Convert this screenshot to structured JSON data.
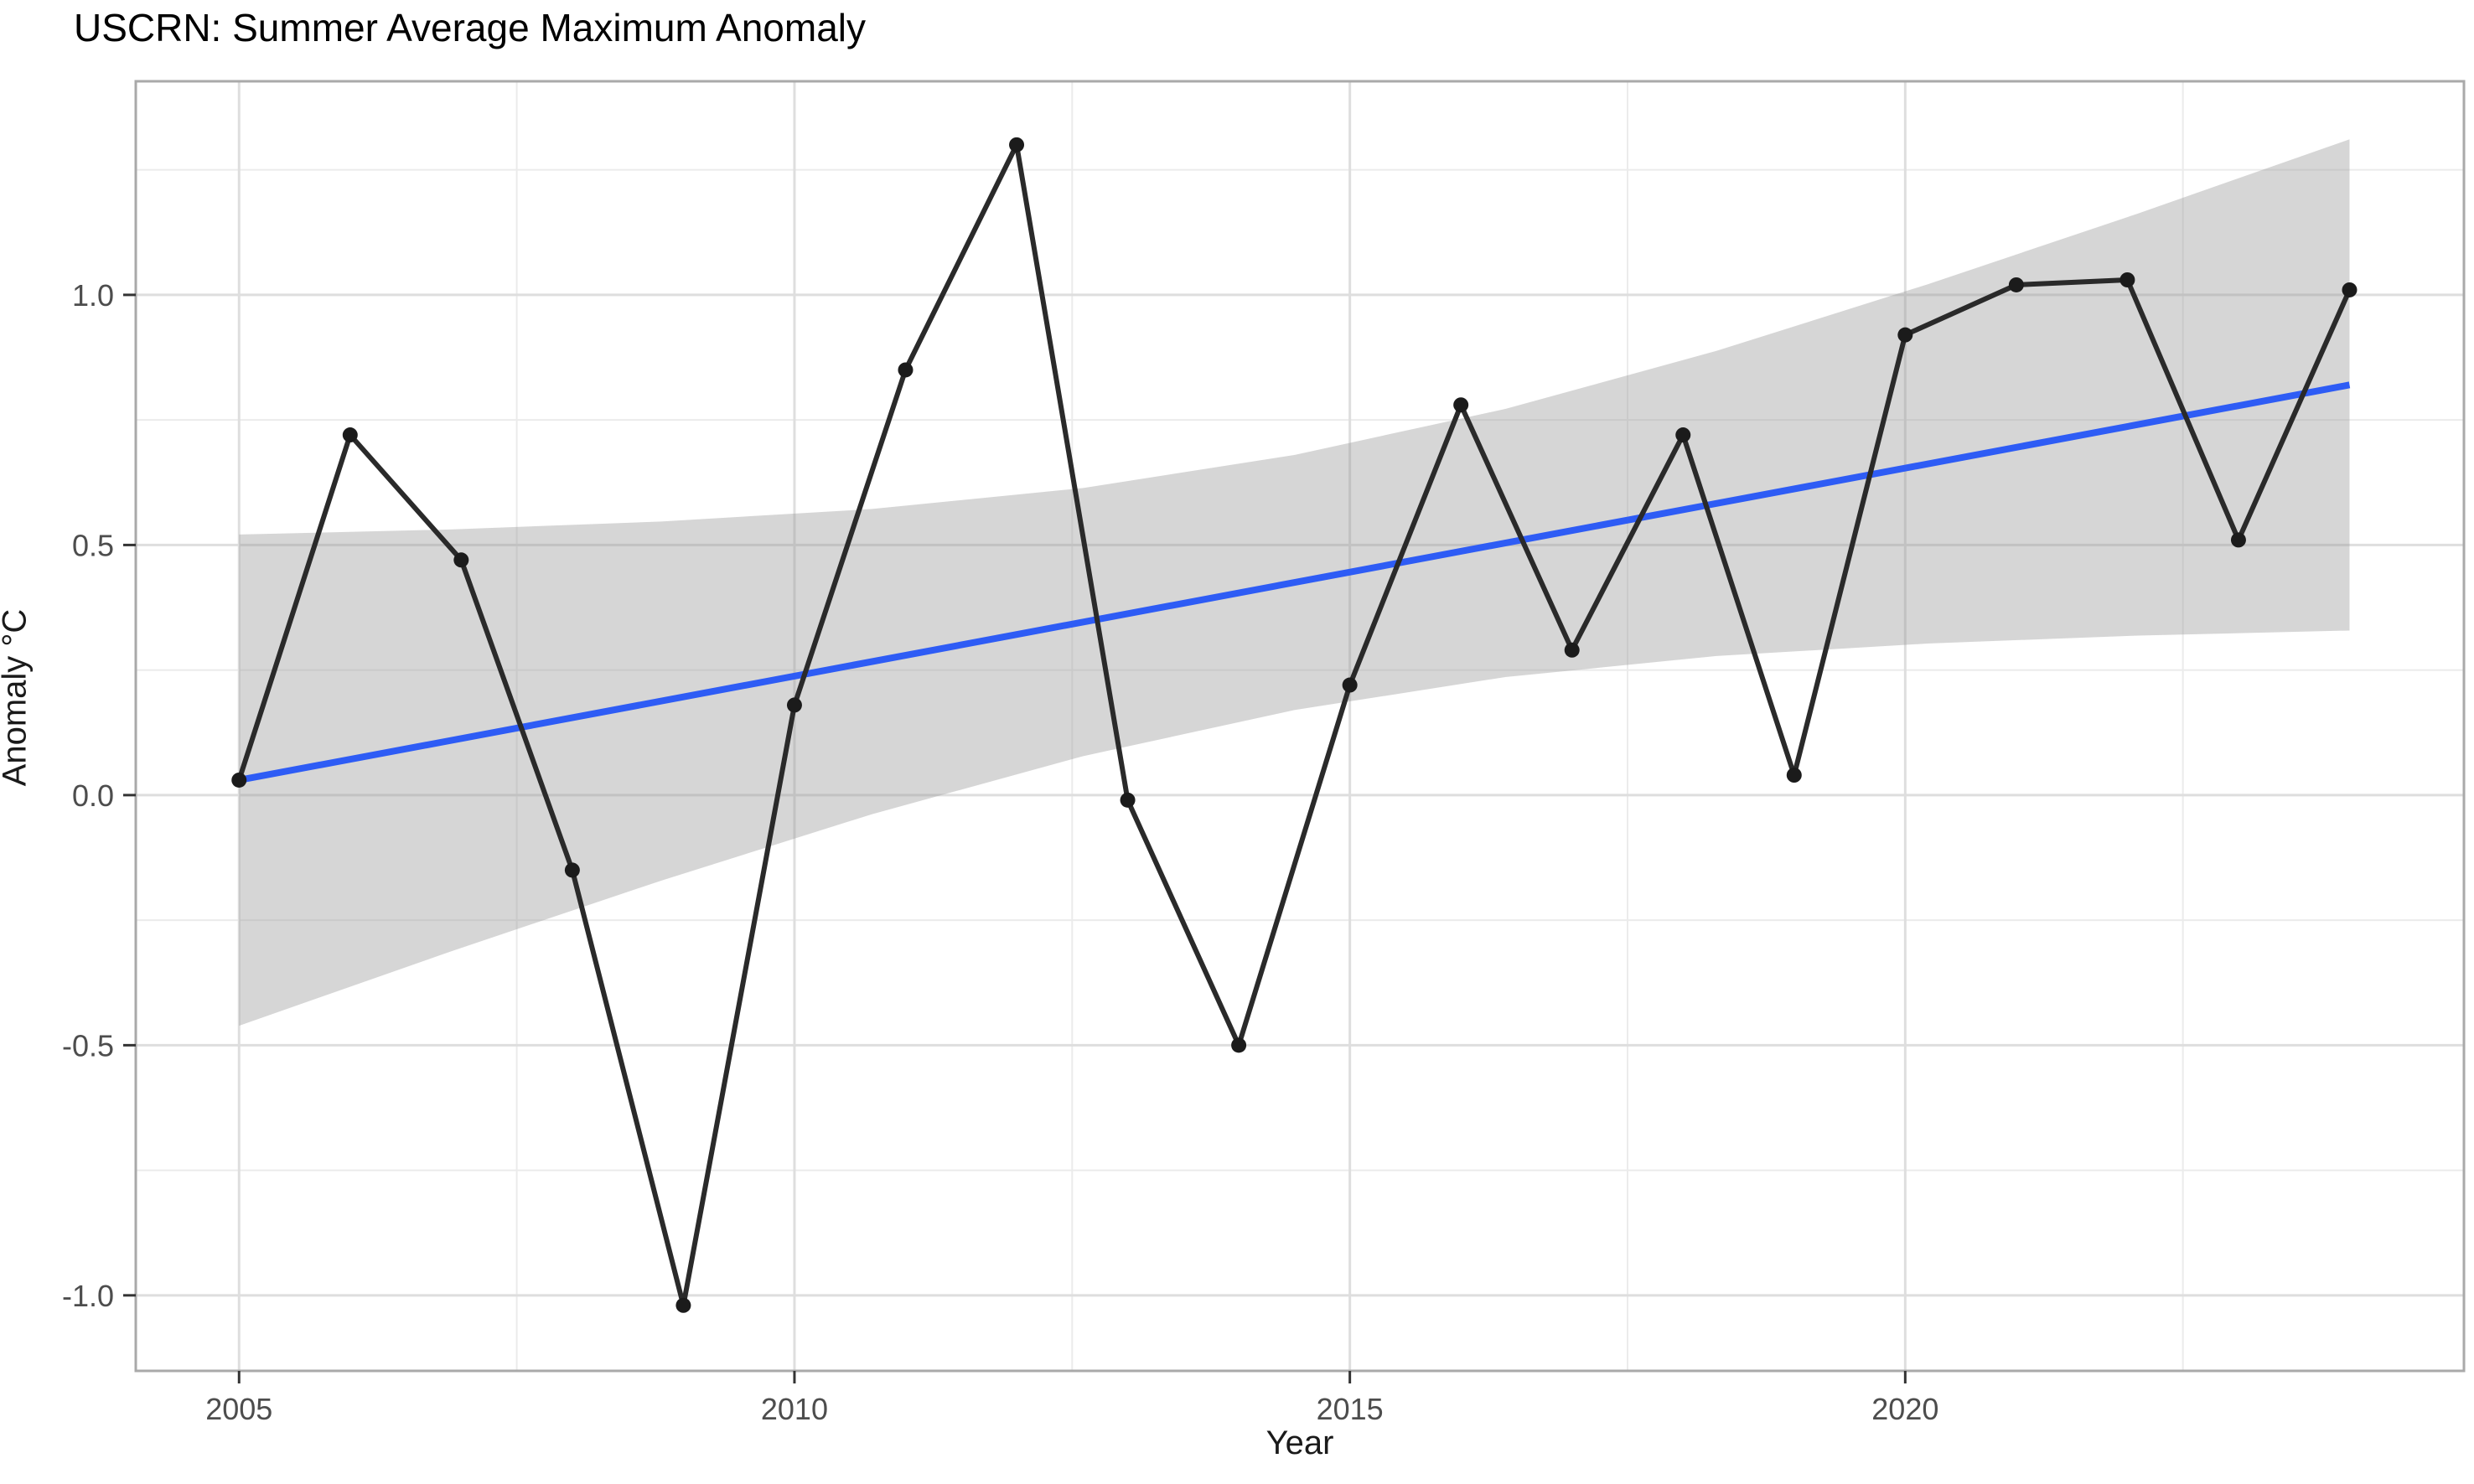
{
  "title": "USCRN: Summer Average Maximum Anomaly",
  "chart_data": {
    "type": "line",
    "title": "USCRN: Summer Average Maximum Anomaly",
    "xlabel": "Year",
    "ylabel": "Anomaly °C",
    "x": [
      2005,
      2006,
      2007,
      2008,
      2009,
      2010,
      2011,
      2012,
      2013,
      2014,
      2015,
      2016,
      2017,
      2018,
      2019,
      2020,
      2021,
      2022,
      2023,
      2024
    ],
    "series": [
      {
        "name": "Summer Average Maximum Anomaly",
        "values": [
          0.03,
          0.72,
          0.47,
          -0.15,
          -1.02,
          0.18,
          0.85,
          1.3,
          -0.01,
          -0.5,
          0.22,
          0.78,
          0.29,
          0.72,
          0.04,
          0.92,
          1.02,
          1.03,
          0.51,
          1.01
        ],
        "color": "#2a2a2a",
        "point_color": "#1b1b1b"
      }
    ],
    "trend_line": {
      "x": [
        2005,
        2024
      ],
      "y": [
        0.03,
        0.82
      ],
      "color": "#2e5cf5"
    },
    "confidence_band": {
      "x": [
        2005,
        2006.9,
        2008.8,
        2010.7,
        2012.6,
        2014.5,
        2016.4,
        2018.3,
        2020.2,
        2022.1,
        2024
      ],
      "upper": [
        0.521,
        0.531,
        0.547,
        0.572,
        0.614,
        0.68,
        0.772,
        0.888,
        1.021,
        1.163,
        1.311
      ],
      "lower": [
        -0.461,
        -0.313,
        -0.171,
        -0.038,
        0.078,
        0.17,
        0.236,
        0.278,
        0.303,
        0.319,
        0.329
      ],
      "fill": "#999999",
      "opacity": 0.4
    },
    "xlim": [
      2004.07,
      2025.03
    ],
    "ylim": [
      -1.151,
      1.427
    ],
    "x_ticks": [
      2005,
      2010,
      2015,
      2020
    ],
    "x_tick_labels": [
      "2005",
      "2010",
      "2015",
      "2020"
    ],
    "x_minor_ticks": [
      2007.5,
      2012.5,
      2017.5,
      2022.5
    ],
    "y_ticks": [
      1.0,
      0.5,
      0.0,
      -0.5,
      -1.0
    ],
    "y_tick_labels": [
      "1.0",
      "0.5",
      "0.0",
      "-0.5",
      "-1.0"
    ],
    "y_minor_ticks": [
      1.25,
      0.75,
      0.25,
      -0.25,
      -0.75
    ],
    "grid": true,
    "legend": false,
    "colors": {
      "panel_border": "#a9a9a9",
      "grid_major": "#dedede",
      "grid_minor": "#ebebeb",
      "tick_mark": "#333333",
      "tick_text": "#4d4d4d",
      "background": "#ffffff"
    }
  }
}
